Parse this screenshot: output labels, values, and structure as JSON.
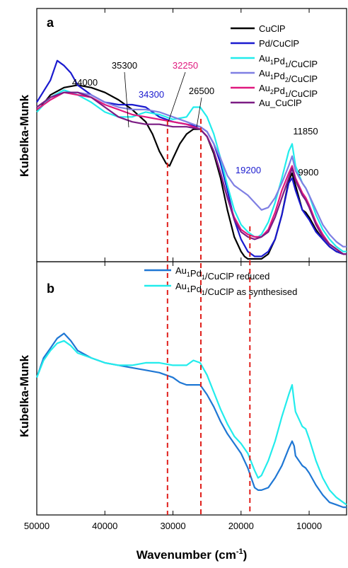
{
  "figure": {
    "ylabel_a": "Kubelka-Munk",
    "ylabel_b": "Kubelka-Munk",
    "xlabel": "Wavenumber (cm",
    "xlabel_sup": "-1",
    "xlabel_close": ")"
  },
  "chart_data": [
    {
      "panel": "a",
      "type": "line",
      "xlabel": "Wavenumber (cm-1)",
      "ylabel": "Kubelka-Munk",
      "xlim": [
        50000,
        4500
      ],
      "ylim": [
        0,
        1
      ],
      "x_reversed": true,
      "y_ticks_labeled": false,
      "x_ticks": [
        50000,
        40000,
        30000,
        20000,
        10000
      ],
      "legend_position": "top-right",
      "series": [
        {
          "name": "CuClP",
          "color": "#000000",
          "x": [
            50000,
            48000,
            46000,
            44000,
            42000,
            40000,
            38000,
            36000,
            34000,
            33000,
            32000,
            31000,
            30500,
            30000,
            29000,
            28000,
            27000,
            26000,
            25000,
            24000,
            23000,
            22000,
            21000,
            20000,
            19500,
            19000,
            18000,
            17000,
            16000,
            15000,
            14000,
            13000,
            12500,
            12000,
            11500,
            11000,
            10500,
            10000,
            9000,
            8000,
            7000,
            6000,
            5000,
            4500
          ],
          "y": [
            0.6,
            0.67,
            0.7,
            0.71,
            0.7,
            0.68,
            0.65,
            0.61,
            0.56,
            0.51,
            0.44,
            0.39,
            0.38,
            0.41,
            0.47,
            0.51,
            0.53,
            0.53,
            0.5,
            0.43,
            0.33,
            0.2,
            0.09,
            0.03,
            0.01,
            0.0,
            0.0,
            0.0,
            0.02,
            0.08,
            0.18,
            0.32,
            0.35,
            0.3,
            0.25,
            0.2,
            0.19,
            0.17,
            0.12,
            0.08,
            0.05,
            0.03,
            0.02,
            0.02
          ]
        },
        {
          "name": "Pd/CuClP",
          "color": "#1a1acf",
          "x": [
            50000,
            48000,
            47000,
            46000,
            45000,
            44000,
            42000,
            40000,
            38000,
            36000,
            34000,
            32000,
            30000,
            28000,
            26000,
            25000,
            24000,
            23000,
            22000,
            21000,
            20000,
            19000,
            18000,
            17000,
            16000,
            15000,
            14000,
            13000,
            12500,
            12000,
            11000,
            10500,
            10000,
            9000,
            8000,
            7000,
            6000,
            5000,
            4500
          ],
          "y": [
            0.64,
            0.73,
            0.81,
            0.79,
            0.76,
            0.71,
            0.67,
            0.64,
            0.63,
            0.63,
            0.62,
            0.58,
            0.56,
            0.55,
            0.54,
            0.52,
            0.47,
            0.39,
            0.28,
            0.16,
            0.08,
            0.03,
            0.01,
            0.01,
            0.03,
            0.08,
            0.18,
            0.31,
            0.33,
            0.28,
            0.2,
            0.18,
            0.16,
            0.11,
            0.08,
            0.05,
            0.03,
            0.02,
            0.02
          ]
        },
        {
          "name": "Au1Pd1/CuClP",
          "color": "#22ecec",
          "x": [
            50000,
            48000,
            46000,
            45000,
            44000,
            42000,
            40000,
            38000,
            36000,
            34000,
            32000,
            30000,
            28000,
            27000,
            26000,
            25000,
            24000,
            23000,
            22000,
            21000,
            20000,
            19000,
            18000,
            17500,
            17000,
            16000,
            15000,
            14000,
            13000,
            12500,
            12000,
            11000,
            10500,
            10000,
            9000,
            8000,
            7000,
            6000,
            5000,
            4500
          ],
          "y": [
            0.6,
            0.66,
            0.69,
            0.68,
            0.67,
            0.64,
            0.6,
            0.58,
            0.58,
            0.6,
            0.59,
            0.57,
            0.58,
            0.62,
            0.62,
            0.58,
            0.51,
            0.41,
            0.3,
            0.2,
            0.14,
            0.11,
            0.09,
            0.09,
            0.1,
            0.15,
            0.23,
            0.33,
            0.44,
            0.47,
            0.38,
            0.31,
            0.29,
            0.26,
            0.18,
            0.12,
            0.08,
            0.05,
            0.03,
            0.03
          ]
        },
        {
          "name": "Au1Pd2/CuClP",
          "color": "#7f7fe3",
          "x": [
            50000,
            48000,
            46000,
            44000,
            42000,
            40000,
            38000,
            36000,
            34000,
            32000,
            30000,
            28000,
            26000,
            25000,
            24000,
            23000,
            22000,
            21000,
            20000,
            19000,
            18000,
            17000,
            16000,
            15000,
            14000,
            13000,
            12500,
            12000,
            11000,
            10500,
            10000,
            9000,
            8000,
            7000,
            6000,
            5000,
            4500
          ],
          "y": [
            0.62,
            0.66,
            0.68,
            0.68,
            0.67,
            0.64,
            0.62,
            0.61,
            0.61,
            0.6,
            0.58,
            0.56,
            0.54,
            0.52,
            0.47,
            0.41,
            0.34,
            0.3,
            0.28,
            0.26,
            0.23,
            0.2,
            0.21,
            0.25,
            0.31,
            0.38,
            0.42,
            0.36,
            0.31,
            0.29,
            0.26,
            0.2,
            0.14,
            0.1,
            0.07,
            0.05,
            0.05
          ]
        },
        {
          "name": "Au2Pd1/CuClP",
          "color": "#e0187e",
          "x": [
            50000,
            48000,
            46000,
            44000,
            42000,
            40000,
            38000,
            36000,
            34000,
            32000,
            30000,
            28000,
            26000,
            25000,
            24000,
            23000,
            22000,
            21000,
            20000,
            19000,
            18000,
            17000,
            16000,
            15000,
            14000,
            13000,
            12500,
            12000,
            11000,
            10500,
            10000,
            9000,
            8000,
            7000,
            6000,
            5000,
            4500
          ],
          "y": [
            0.61,
            0.65,
            0.68,
            0.67,
            0.66,
            0.63,
            0.61,
            0.59,
            0.58,
            0.57,
            0.56,
            0.55,
            0.53,
            0.5,
            0.44,
            0.35,
            0.25,
            0.17,
            0.12,
            0.1,
            0.09,
            0.09,
            0.12,
            0.19,
            0.28,
            0.35,
            0.38,
            0.33,
            0.27,
            0.25,
            0.22,
            0.15,
            0.1,
            0.06,
            0.04,
            0.02,
            0.02
          ]
        },
        {
          "name": "Au_CuClP",
          "color": "#7c1c84",
          "x": [
            50000,
            48000,
            46000,
            44000,
            42000,
            40000,
            38000,
            36000,
            34000,
            32000,
            30000,
            28000,
            26000,
            25000,
            24000,
            23000,
            22000,
            21000,
            20000,
            19000,
            18000,
            17000,
            16000,
            15000,
            14000,
            13000,
            12500,
            12000,
            11000,
            10500,
            10000,
            9000,
            8000,
            7000,
            6000,
            5000,
            4500
          ],
          "y": [
            0.62,
            0.66,
            0.68,
            0.68,
            0.66,
            0.62,
            0.58,
            0.56,
            0.55,
            0.55,
            0.54,
            0.54,
            0.53,
            0.5,
            0.44,
            0.35,
            0.25,
            0.16,
            0.11,
            0.09,
            0.08,
            0.09,
            0.11,
            0.17,
            0.25,
            0.33,
            0.37,
            0.32,
            0.26,
            0.24,
            0.21,
            0.14,
            0.09,
            0.06,
            0.04,
            0.02,
            0.02
          ]
        }
      ],
      "annotations": [
        {
          "text": "44000",
          "x": 44000,
          "y": 0.74,
          "color": "#000000"
        },
        {
          "text": "35300",
          "x": 35300,
          "y": 0.81,
          "color": "#000000"
        },
        {
          "text": "32250",
          "x": 32250,
          "y": 0.81,
          "color": "#e0187e"
        },
        {
          "text": "34300",
          "x": 34300,
          "y": 0.69,
          "color": "#1a1acf"
        },
        {
          "text": "26500",
          "x": 26500,
          "y": 0.72,
          "color": "#000000"
        },
        {
          "text": "19200",
          "x": 19200,
          "y": 0.4,
          "color": "#1a1acf"
        },
        {
          "text": "11850",
          "x": 11850,
          "y": 0.51,
          "color": "#000000"
        },
        {
          "text": "9900",
          "x": 9900,
          "y": 0.36,
          "color": "#000000"
        }
      ],
      "dashed_lines_x": [
        30800,
        25900,
        18700
      ],
      "dashed_line_color": "#e0201c"
    },
    {
      "panel": "b",
      "type": "line",
      "xlabel": "Wavenumber (cm-1)",
      "ylabel": "Kubelka-Munk",
      "xlim": [
        50000,
        4500
      ],
      "ylim": [
        0,
        1
      ],
      "x_reversed": true,
      "y_ticks_labeled": false,
      "x_ticks": [
        50000,
        40000,
        30000,
        20000,
        10000
      ],
      "legend_position": "top-center",
      "series": [
        {
          "name": "Au1Pd1/CuClP reduced",
          "color": "#1f77d4",
          "x": [
            50000,
            49000,
            48000,
            47000,
            46000,
            45000,
            44000,
            42000,
            40000,
            38000,
            36000,
            34000,
            32000,
            30000,
            29000,
            28000,
            27000,
            26000,
            25000,
            24000,
            23000,
            22000,
            21000,
            20000,
            19000,
            18500,
            18000,
            17500,
            17000,
            16000,
            15000,
            14000,
            13000,
            12500,
            12200,
            12000,
            11000,
            10500,
            10000,
            9000,
            8000,
            7000,
            6000,
            5000,
            4500
          ],
          "y": [
            0.55,
            0.63,
            0.67,
            0.71,
            0.73,
            0.7,
            0.66,
            0.63,
            0.61,
            0.6,
            0.59,
            0.58,
            0.57,
            0.55,
            0.53,
            0.52,
            0.52,
            0.52,
            0.48,
            0.43,
            0.37,
            0.32,
            0.28,
            0.24,
            0.18,
            0.14,
            0.1,
            0.09,
            0.09,
            0.1,
            0.14,
            0.19,
            0.26,
            0.29,
            0.27,
            0.23,
            0.19,
            0.18,
            0.16,
            0.11,
            0.07,
            0.04,
            0.03,
            0.02,
            0.02
          ]
        },
        {
          "name": "Au1Pd1/CuClP as synthesised",
          "color": "#22ecec",
          "x": [
            50000,
            49000,
            48000,
            47000,
            46000,
            45000,
            44000,
            42000,
            40000,
            38000,
            36000,
            34000,
            32000,
            30000,
            28000,
            27000,
            26000,
            25000,
            24000,
            23000,
            22000,
            21000,
            20000,
            19000,
            18000,
            17500,
            17000,
            16000,
            15000,
            14000,
            13000,
            12500,
            12200,
            12000,
            11000,
            10500,
            10000,
            9000,
            8000,
            7000,
            6000,
            5000,
            4500
          ],
          "y": [
            0.55,
            0.62,
            0.66,
            0.69,
            0.7,
            0.68,
            0.65,
            0.63,
            0.61,
            0.6,
            0.6,
            0.61,
            0.61,
            0.6,
            0.6,
            0.62,
            0.61,
            0.56,
            0.49,
            0.42,
            0.36,
            0.31,
            0.28,
            0.24,
            0.17,
            0.14,
            0.15,
            0.21,
            0.29,
            0.39,
            0.48,
            0.52,
            0.45,
            0.41,
            0.35,
            0.34,
            0.3,
            0.21,
            0.14,
            0.09,
            0.06,
            0.04,
            0.03
          ]
        }
      ],
      "dashed_lines_x": [
        30800,
        25900,
        18700
      ],
      "dashed_line_color": "#e0201c"
    }
  ],
  "legend_a": [
    {
      "main": "CuClP",
      "parts": [
        [
          "CuClP",
          false
        ]
      ]
    },
    {
      "main": "Pd/CuClP",
      "parts": [
        [
          "Pd/CuClP",
          false
        ]
      ]
    },
    {
      "main": "Au1Pd1/CuClP",
      "parts": [
        [
          "Au",
          false
        ],
        [
          "1",
          true
        ],
        [
          "Pd",
          false
        ],
        [
          "1",
          true
        ],
        [
          "/CuClP",
          false
        ]
      ]
    },
    {
      "main": "Au1Pd2/CuClP",
      "parts": [
        [
          "Au",
          false
        ],
        [
          "1",
          true
        ],
        [
          "Pd",
          false
        ],
        [
          "2",
          true
        ],
        [
          "/CuClP",
          false
        ]
      ]
    },
    {
      "main": "Au2Pd1/CuClP",
      "parts": [
        [
          "Au",
          false
        ],
        [
          "2",
          true
        ],
        [
          "Pd",
          false
        ],
        [
          "1",
          true
        ],
        [
          "/CuClP",
          false
        ]
      ]
    },
    {
      "main": "Au_CuClP",
      "parts": [
        [
          "Au_CuClP",
          false
        ]
      ]
    }
  ],
  "legend_b": [
    {
      "parts": [
        [
          "Au",
          false
        ],
        [
          "1",
          true
        ],
        [
          "Pd",
          false
        ],
        [
          "1",
          true
        ],
        [
          "/CuClP reduced",
          false
        ]
      ]
    },
    {
      "parts": [
        [
          "Au",
          false
        ],
        [
          "1",
          true
        ],
        [
          "Pd",
          false
        ],
        [
          "1",
          true
        ],
        [
          "/CuClP as synthesised",
          false
        ]
      ]
    }
  ],
  "panel_letters": [
    "a",
    "b"
  ],
  "x_tick_labels": [
    "50000",
    "40000",
    "30000",
    "20000",
    "10000"
  ]
}
